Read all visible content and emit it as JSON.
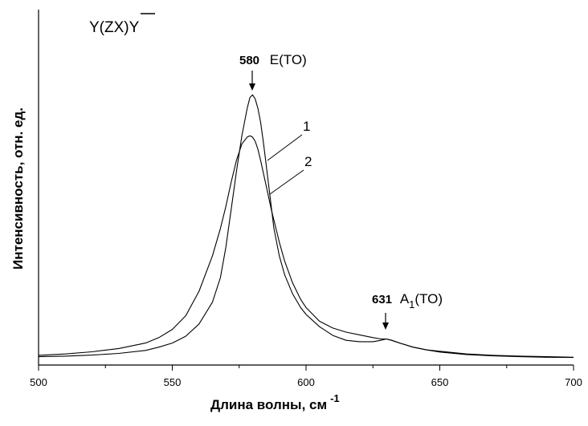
{
  "chart_data": {
    "type": "line",
    "title": "Y(ZX)Y",
    "xlabel": "Длина волны, см",
    "xlabel_sup": "-1",
    "ylabel": "Интенсивность, отн. ед.",
    "xlim": [
      500,
      700
    ],
    "ylim": [
      0,
      1
    ],
    "x_ticks": [
      "500",
      "550",
      "600",
      "650",
      "700"
    ],
    "grid": false,
    "series": [
      {
        "name": "1",
        "x": [
          500,
          510,
          520,
          530,
          540,
          545,
          550,
          555,
          560,
          565,
          568,
          570,
          572,
          574,
          576,
          578,
          579,
          580,
          581,
          582,
          583,
          584,
          585,
          586,
          587,
          588,
          590,
          592,
          595,
          598,
          600,
          605,
          610,
          615,
          620,
          625,
          628,
          630,
          632,
          635,
          640,
          645,
          650,
          660,
          670,
          680,
          690,
          700
        ],
        "y": [
          0.01,
          0.012,
          0.016,
          0.022,
          0.033,
          0.045,
          0.06,
          0.085,
          0.13,
          0.21,
          0.3,
          0.41,
          0.55,
          0.69,
          0.82,
          0.92,
          0.96,
          0.97,
          0.955,
          0.92,
          0.87,
          0.8,
          0.72,
          0.64,
          0.56,
          0.48,
          0.38,
          0.31,
          0.24,
          0.19,
          0.165,
          0.12,
          0.088,
          0.07,
          0.065,
          0.065,
          0.07,
          0.075,
          0.07,
          0.06,
          0.045,
          0.035,
          0.027,
          0.018,
          0.013,
          0.01,
          0.008,
          0.007
        ]
      },
      {
        "name": "2",
        "x": [
          500,
          510,
          520,
          530,
          540,
          545,
          550,
          555,
          560,
          565,
          568,
          570,
          572,
          574,
          576,
          578,
          579,
          580,
          581,
          582,
          583,
          585,
          587,
          590,
          592,
          595,
          598,
          600,
          605,
          610,
          615,
          620,
          625,
          628,
          630,
          632,
          635,
          640,
          645,
          650,
          660,
          670,
          680,
          690,
          700
        ],
        "y": [
          0.015,
          0.02,
          0.028,
          0.04,
          0.06,
          0.08,
          0.11,
          0.16,
          0.25,
          0.38,
          0.48,
          0.56,
          0.65,
          0.73,
          0.79,
          0.815,
          0.82,
          0.815,
          0.8,
          0.77,
          0.73,
          0.64,
          0.55,
          0.43,
          0.36,
          0.28,
          0.22,
          0.19,
          0.14,
          0.115,
          0.1,
          0.09,
          0.08,
          0.075,
          0.075,
          0.07,
          0.06,
          0.045,
          0.035,
          0.03,
          0.02,
          0.015,
          0.012,
          0.01,
          0.008
        ]
      }
    ],
    "annotations": [
      {
        "value": "580",
        "label": "E(TO)",
        "x": 580
      },
      {
        "value": "631",
        "label": "A",
        "sub": "1",
        "suffix": "(TO)",
        "x": 631
      }
    ],
    "curve_labels": [
      "1",
      "2"
    ]
  }
}
